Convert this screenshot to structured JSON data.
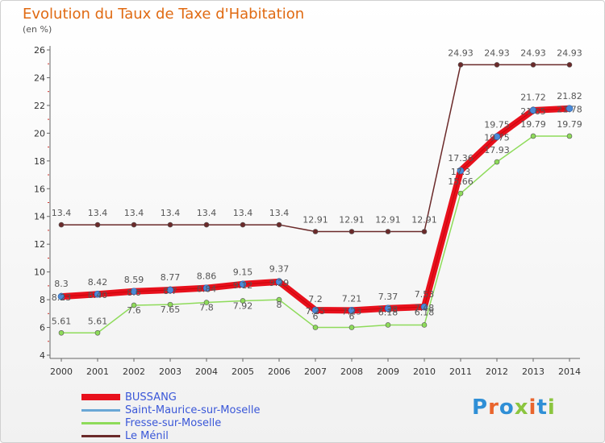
{
  "header": {
    "title": "Evolution du Taux de Taxe d'Habitation",
    "unit": "(en %)"
  },
  "logo": {
    "text": "Proxiti",
    "colors": [
      "#2f8fd6",
      "#e9652d",
      "#2f8fd6",
      "#8bc53f",
      "#e9652d",
      "#2f8fd6",
      "#8bc53f"
    ]
  },
  "chart_data": {
    "type": "line",
    "categories": [
      "2000",
      "2001",
      "2002",
      "2003",
      "2004",
      "2005",
      "2006",
      "2007",
      "2008",
      "2009",
      "2010",
      "2011",
      "2012",
      "2013",
      "2014"
    ],
    "ylim": [
      4,
      26
    ],
    "yticks": [
      4,
      6,
      8,
      10,
      12,
      14,
      16,
      18,
      20,
      22,
      24,
      26
    ],
    "grid": false,
    "legend_position": "bottom-left",
    "series": [
      {
        "name": "Le Ménil",
        "color": "#6b2a2a",
        "values": [
          13.4,
          13.4,
          13.4,
          13.4,
          13.4,
          13.4,
          13.4,
          12.91,
          12.91,
          12.91,
          12.91,
          24.93,
          24.93,
          24.93,
          24.93
        ],
        "labels": [
          "13.4",
          "13.4",
          "13.4",
          "13.4",
          "13.4",
          "13.4",
          "13.4",
          "12.91",
          "12.91",
          "12.91",
          "12.91",
          "24.93",
          "24.93",
          "24.93",
          "24.93"
        ]
      },
      {
        "name": "Fresse-sur-Moselle",
        "color": "#8edb5a",
        "values": [
          5.61,
          5.61,
          7.6,
          7.65,
          7.8,
          7.92,
          8.0,
          6.0,
          6.0,
          6.18,
          6.18,
          15.66,
          17.93,
          19.79,
          19.79
        ],
        "labels": [
          "5.61",
          "5.61",
          "7.6",
          "7.65",
          "7.8",
          "7.92",
          "8",
          "6",
          "6",
          "6.18",
          "6.18",
          "15.66",
          "17.93",
          "19.79",
          "19.79"
        ]
      },
      {
        "name": "Saint-Maurice-sur-Moselle",
        "color": "#6aa7d6",
        "values": [
          8.3,
          8.42,
          8.59,
          8.77,
          8.86,
          9.15,
          9.37,
          7.2,
          7.21,
          7.37,
          7.53,
          17.36,
          19.75,
          21.72,
          21.82
        ],
        "labels": [
          "8.3",
          "8.42",
          "8.59",
          "8.77",
          "8.86",
          "9.15",
          "9.37",
          "7.2",
          "7.21",
          "7.37",
          "7.53",
          "17.36",
          "19.75",
          "21.72",
          "21.82"
        ]
      },
      {
        "name": "BUSSANG",
        "color": "#e8101c",
        "values": [
          8.23,
          8.4,
          8.6,
          8.7,
          8.84,
          9.12,
          9.29,
          7.25,
          7.23,
          7.38,
          7.48,
          17.3,
          19.75,
          21.65,
          21.78
        ],
        "labels": [
          "8.23",
          "8.40",
          "8.6",
          "8.7",
          "8.84",
          "9.12",
          "9.29",
          "7.25",
          "7.23",
          "7.38",
          "7.48",
          "17.3",
          "19.75",
          "21.65",
          "21.78"
        ]
      }
    ]
  },
  "legend": [
    {
      "name": "BUSSANG",
      "color": "#e8101c"
    },
    {
      "name": "Saint-Maurice-sur-Moselle",
      "color": "#6aa7d6"
    },
    {
      "name": "Fresse-sur-Moselle",
      "color": "#8edb5a"
    },
    {
      "name": "Le Ménil",
      "color": "#6b2a2a"
    }
  ]
}
